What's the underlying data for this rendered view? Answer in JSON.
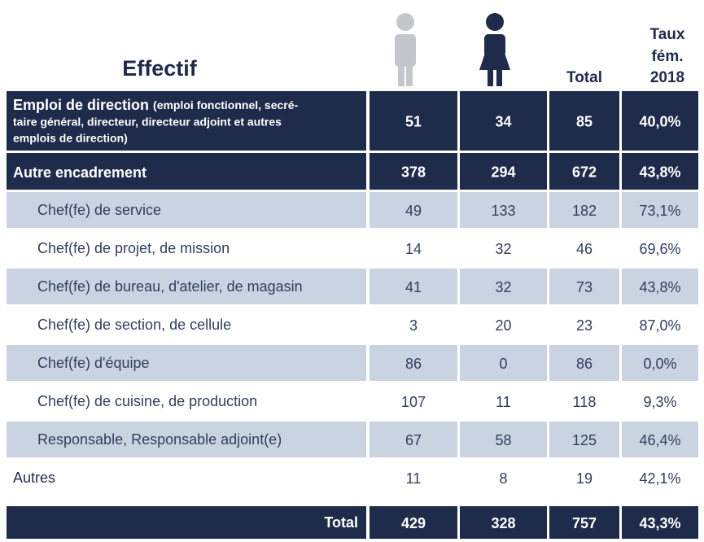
{
  "header": {
    "title": "Effectif",
    "total": "Total",
    "rate": [
      "Taux",
      "fém.",
      "2018"
    ]
  },
  "table": {
    "rows": [
      {
        "label": "Emploi de direction",
        "note": [
          "(emploi fonctionnel, secré-",
          "taire général, directeur, directeur adjoint et autres",
          "emplois de direction)"
        ],
        "values": [
          "51",
          "34",
          "85",
          "40,0%"
        ]
      },
      {
        "label": "Autre encadrement",
        "values": [
          "378",
          "294",
          "672",
          "43,8%"
        ]
      },
      {
        "label": "Chef(fe) de service",
        "values": [
          "49",
          "133",
          "182",
          "73,1%"
        ]
      },
      {
        "label": "Chef(fe) de projet, de mission",
        "values": [
          "14",
          "32",
          "46",
          "69,6%"
        ]
      },
      {
        "label": "Chef(fe) de bureau, d'atelier, de magasin",
        "values": [
          "41",
          "32",
          "73",
          "43,8%"
        ]
      },
      {
        "label": "Chef(fe) de section, de cellule",
        "values": [
          "3",
          "20",
          "23",
          "87,0%"
        ]
      },
      {
        "label": "Chef(fe) d'équipe",
        "values": [
          "86",
          "0",
          "86",
          "0,0%"
        ]
      },
      {
        "label": "Chef(fe) de cuisine, de production",
        "values": [
          "107",
          "11",
          "118",
          "9,3%"
        ]
      },
      {
        "label": "Responsable, Responsable adjoint(e)",
        "values": [
          "67",
          "58",
          "125",
          "46,4%"
        ]
      },
      {
        "label": "Autres",
        "values": [
          "11",
          "8",
          "19",
          "42,1%"
        ]
      }
    ],
    "total": {
      "label": "Total",
      "values": [
        "429",
        "328",
        "757",
        "43,3%"
      ]
    }
  }
}
